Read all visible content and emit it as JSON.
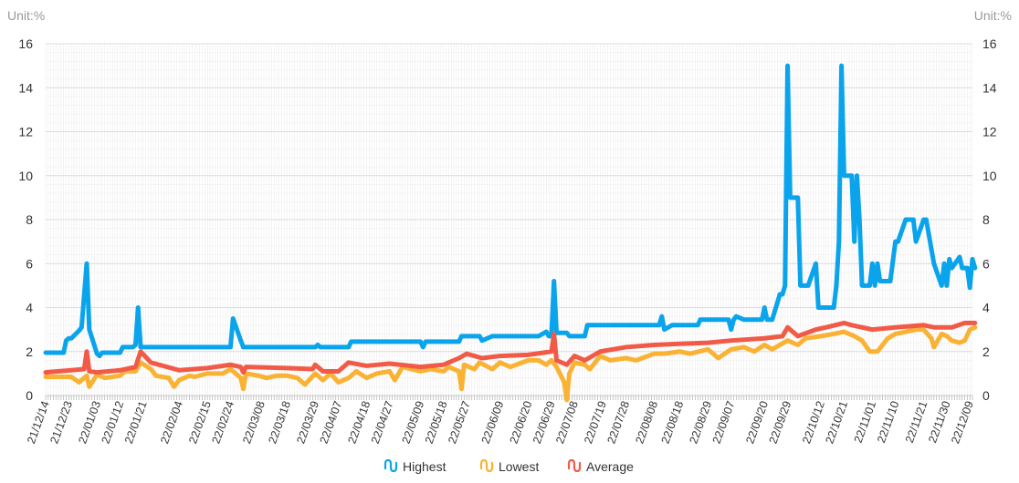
{
  "chart_data": {
    "type": "line",
    "left_unit_label": "Unit:%",
    "right_unit_label": "Unit:%",
    "ylim": [
      0,
      16
    ],
    "yticks": [
      0,
      2,
      4,
      6,
      8,
      10,
      12,
      14,
      16
    ],
    "grid": true,
    "legend_position": "bottom",
    "x_start": "21/12/14",
    "x_end": "22/12/10",
    "x_tick_labels": [
      "21/12/14",
      "21/12/23",
      "22/01/03",
      "22/01/12",
      "22/01/21",
      "22/02/04",
      "22/02/15",
      "22/02/24",
      "22/03/08",
      "22/03/18",
      "22/03/29",
      "22/04/07",
      "22/04/18",
      "22/04/27",
      "22/05/09",
      "22/05/18",
      "22/05/27",
      "22/06/09",
      "22/06/20",
      "22/06/29",
      "22/07/08",
      "22/07/19",
      "22/07/28",
      "22/08/08",
      "22/08/18",
      "22/08/29",
      "22/09/07",
      "22/09/20",
      "22/09/29",
      "22/10/12",
      "22/10/21",
      "22/11/01",
      "22/11/10",
      "22/11/21",
      "22/11/30",
      "22/12/09"
    ],
    "series": [
      {
        "name": "Highest",
        "color": "#0aa4ec",
        "points": [
          [
            "21/12/14",
            1.95
          ],
          [
            "21/12/21",
            1.95
          ],
          [
            "21/12/22",
            2.5
          ],
          [
            "21/12/23",
            2.6
          ],
          [
            "21/12/24",
            2.6
          ],
          [
            "21/12/27",
            2.95
          ],
          [
            "21/12/28",
            3.1
          ],
          [
            "21/12/30",
            6.0
          ],
          [
            "21/12/31",
            3.0
          ],
          [
            "22/01/03",
            1.9
          ],
          [
            "22/01/04",
            1.8
          ],
          [
            "22/01/05",
            1.95
          ],
          [
            "22/01/12",
            1.95
          ],
          [
            "22/01/13",
            2.2
          ],
          [
            "22/01/17",
            2.2
          ],
          [
            "22/01/18",
            2.3
          ],
          [
            "22/01/19",
            4.0
          ],
          [
            "22/01/20",
            2.2
          ],
          [
            "22/02/24",
            2.2
          ],
          [
            "22/02/25",
            3.5
          ],
          [
            "22/02/28",
            2.5
          ],
          [
            "22/03/01",
            2.2
          ],
          [
            "22/03/29",
            2.2
          ],
          [
            "22/03/30",
            2.3
          ],
          [
            "22/03/31",
            2.2
          ],
          [
            "22/04/11",
            2.2
          ],
          [
            "22/04/12",
            2.45
          ],
          [
            "22/05/09",
            2.45
          ],
          [
            "22/05/10",
            2.2
          ],
          [
            "22/05/11",
            2.45
          ],
          [
            "22/05/24",
            2.45
          ],
          [
            "22/05/25",
            2.7
          ],
          [
            "22/06/01",
            2.7
          ],
          [
            "22/06/02",
            2.5
          ],
          [
            "22/06/06",
            2.7
          ],
          [
            "22/06/24",
            2.7
          ],
          [
            "22/06/27",
            2.9
          ],
          [
            "22/06/28",
            2.7
          ],
          [
            "22/06/29",
            2.7
          ],
          [
            "22/06/30",
            5.2
          ],
          [
            "22/07/01",
            2.85
          ],
          [
            "22/07/05",
            2.85
          ],
          [
            "22/07/06",
            2.7
          ],
          [
            "22/07/12",
            2.7
          ],
          [
            "22/07/13",
            3.2
          ],
          [
            "22/08/10",
            3.2
          ],
          [
            "22/08/11",
            3.6
          ],
          [
            "22/08/12",
            3.0
          ],
          [
            "22/08/15",
            3.2
          ],
          [
            "22/08/25",
            3.2
          ],
          [
            "22/08/26",
            3.45
          ],
          [
            "22/09/06",
            3.45
          ],
          [
            "22/09/07",
            3.0
          ],
          [
            "22/09/08",
            3.45
          ],
          [
            "22/09/09",
            3.6
          ],
          [
            "22/09/12",
            3.45
          ],
          [
            "22/09/19",
            3.45
          ],
          [
            "22/09/20",
            4.0
          ],
          [
            "22/09/21",
            3.45
          ],
          [
            "22/09/23",
            3.45
          ],
          [
            "22/09/26",
            4.6
          ],
          [
            "22/09/27",
            4.6
          ],
          [
            "22/09/28",
            5.0
          ],
          [
            "22/09/29",
            15.0
          ],
          [
            "22/09/30",
            9.0
          ],
          [
            "22/10/03",
            9.0
          ],
          [
            "22/10/04",
            5.0
          ],
          [
            "22/10/07",
            5.0
          ],
          [
            "22/10/10",
            6.0
          ],
          [
            "22/10/11",
            4.0
          ],
          [
            "22/10/17",
            4.0
          ],
          [
            "22/10/18",
            5.0
          ],
          [
            "22/10/19",
            7.0
          ],
          [
            "22/10/20",
            15.0
          ],
          [
            "22/10/21",
            10.0
          ],
          [
            "22/10/24",
            10.0
          ],
          [
            "22/10/25",
            7.0
          ],
          [
            "22/10/26",
            10.0
          ],
          [
            "22/10/27",
            8.0
          ],
          [
            "22/10/28",
            5.0
          ],
          [
            "22/10/31",
            5.0
          ],
          [
            "22/11/01",
            6.0
          ],
          [
            "22/11/02",
            5.0
          ],
          [
            "22/11/03",
            6.0
          ],
          [
            "22/11/04",
            5.2
          ],
          [
            "22/11/08",
            5.2
          ],
          [
            "22/11/10",
            7.0
          ],
          [
            "22/11/11",
            7.0
          ],
          [
            "22/11/14",
            8.0
          ],
          [
            "22/11/17",
            8.0
          ],
          [
            "22/11/18",
            7.0
          ],
          [
            "22/11/21",
            8.0
          ],
          [
            "22/11/22",
            8.0
          ],
          [
            "22/11/25",
            6.0
          ],
          [
            "22/11/28",
            5.0
          ],
          [
            "22/11/29",
            6.0
          ],
          [
            "22/11/30",
            5.0
          ],
          [
            "22/12/01",
            6.2
          ],
          [
            "22/12/02",
            5.8
          ],
          [
            "22/12/05",
            6.3
          ],
          [
            "22/12/06",
            5.8
          ],
          [
            "22/12/08",
            5.8
          ],
          [
            "22/12/09",
            4.9
          ],
          [
            "22/12/10",
            6.2
          ],
          [
            "22/12/11",
            5.8
          ]
        ]
      },
      {
        "name": "Lowest",
        "color": "#f9b233",
        "points": [
          [
            "21/12/14",
            0.85
          ],
          [
            "21/12/24",
            0.85
          ],
          [
            "21/12/27",
            0.6
          ],
          [
            "21/12/30",
            0.9
          ],
          [
            "21/12/31",
            0.4
          ],
          [
            "22/01/03",
            0.95
          ],
          [
            "22/01/06",
            0.8
          ],
          [
            "22/01/12",
            0.9
          ],
          [
            "22/01/14",
            1.1
          ],
          [
            "22/01/18",
            1.1
          ],
          [
            "22/01/20",
            1.5
          ],
          [
            "22/01/24",
            1.2
          ],
          [
            "22/01/26",
            0.9
          ],
          [
            "22/01/31",
            0.8
          ],
          [
            "22/02/02",
            0.4
          ],
          [
            "22/02/04",
            0.7
          ],
          [
            "22/02/08",
            0.9
          ],
          [
            "22/02/10",
            0.85
          ],
          [
            "22/02/15",
            1.0
          ],
          [
            "22/02/21",
            1.0
          ],
          [
            "22/02/24",
            1.2
          ],
          [
            "22/02/28",
            0.8
          ],
          [
            "22/03/01",
            0.3
          ],
          [
            "22/03/02",
            1.0
          ],
          [
            "22/03/07",
            0.9
          ],
          [
            "22/03/10",
            0.8
          ],
          [
            "22/03/14",
            0.9
          ],
          [
            "22/03/18",
            0.9
          ],
          [
            "22/03/22",
            0.8
          ],
          [
            "22/03/25",
            0.5
          ],
          [
            "22/03/29",
            1.0
          ],
          [
            "22/04/01",
            0.7
          ],
          [
            "22/04/04",
            1.0
          ],
          [
            "22/04/07",
            0.6
          ],
          [
            "22/04/11",
            0.8
          ],
          [
            "22/04/14",
            1.1
          ],
          [
            "22/04/18",
            0.8
          ],
          [
            "22/04/22",
            1.0
          ],
          [
            "22/04/27",
            1.1
          ],
          [
            "22/04/29",
            0.7
          ],
          [
            "22/05/02",
            1.3
          ],
          [
            "22/05/09",
            1.1
          ],
          [
            "22/05/13",
            1.2
          ],
          [
            "22/05/18",
            1.1
          ],
          [
            "22/05/20",
            1.3
          ],
          [
            "22/05/24",
            1.1
          ],
          [
            "22/05/25",
            0.3
          ],
          [
            "22/05/26",
            1.4
          ],
          [
            "22/05/30",
            1.2
          ],
          [
            "22/06/01",
            1.5
          ],
          [
            "22/06/06",
            1.2
          ],
          [
            "22/06/09",
            1.5
          ],
          [
            "22/06/13",
            1.3
          ],
          [
            "22/06/20",
            1.6
          ],
          [
            "22/06/24",
            1.6
          ],
          [
            "22/06/27",
            1.4
          ],
          [
            "22/06/29",
            1.6
          ],
          [
            "22/07/01",
            1.3
          ],
          [
            "22/07/04",
            0.6
          ],
          [
            "22/07/05",
            -0.2
          ],
          [
            "22/07/06",
            1.0
          ],
          [
            "22/07/08",
            1.5
          ],
          [
            "22/07/12",
            1.4
          ],
          [
            "22/07/14",
            1.2
          ],
          [
            "22/07/18",
            1.8
          ],
          [
            "22/07/22",
            1.6
          ],
          [
            "22/07/28",
            1.7
          ],
          [
            "22/08/01",
            1.6
          ],
          [
            "22/08/08",
            1.9
          ],
          [
            "22/08/12",
            1.9
          ],
          [
            "22/08/18",
            2.0
          ],
          [
            "22/08/22",
            1.9
          ],
          [
            "22/08/29",
            2.1
          ],
          [
            "22/09/02",
            1.7
          ],
          [
            "22/09/07",
            2.1
          ],
          [
            "22/09/12",
            2.2
          ],
          [
            "22/09/16",
            2.0
          ],
          [
            "22/09/20",
            2.3
          ],
          [
            "22/09/23",
            2.1
          ],
          [
            "22/09/29",
            2.5
          ],
          [
            "22/10/03",
            2.3
          ],
          [
            "22/10/06",
            2.6
          ],
          [
            "22/10/12",
            2.7
          ],
          [
            "22/10/17",
            2.8
          ],
          [
            "22/10/21",
            2.9
          ],
          [
            "22/10/25",
            2.7
          ],
          [
            "22/10/28",
            2.5
          ],
          [
            "22/10/31",
            2.0
          ],
          [
            "22/11/03",
            2.0
          ],
          [
            "22/11/07",
            2.6
          ],
          [
            "22/11/10",
            2.8
          ],
          [
            "22/11/14",
            2.9
          ],
          [
            "22/11/18",
            3.0
          ],
          [
            "22/11/21",
            3.0
          ],
          [
            "22/11/24",
            2.6
          ],
          [
            "22/11/25",
            2.2
          ],
          [
            "22/11/28",
            2.8
          ],
          [
            "22/11/30",
            2.7
          ],
          [
            "22/12/02",
            2.5
          ],
          [
            "22/12/05",
            2.4
          ],
          [
            "22/12/07",
            2.5
          ],
          [
            "22/12/09",
            3.0
          ],
          [
            "22/12/11",
            3.1
          ]
        ]
      },
      {
        "name": "Average",
        "color": "#f25a48",
        "points": [
          [
            "21/12/14",
            1.05
          ],
          [
            "21/12/24",
            1.15
          ],
          [
            "21/12/29",
            1.2
          ],
          [
            "21/12/30",
            2.0
          ],
          [
            "21/12/31",
            1.1
          ],
          [
            "22/01/03",
            1.05
          ],
          [
            "22/01/12",
            1.15
          ],
          [
            "22/01/18",
            1.3
          ],
          [
            "22/01/20",
            2.0
          ],
          [
            "22/01/24",
            1.5
          ],
          [
            "22/02/04",
            1.15
          ],
          [
            "22/02/15",
            1.25
          ],
          [
            "22/02/24",
            1.4
          ],
          [
            "22/02/28",
            1.3
          ],
          [
            "22/03/01",
            1.05
          ],
          [
            "22/03/02",
            1.3
          ],
          [
            "22/03/18",
            1.25
          ],
          [
            "22/03/28",
            1.2
          ],
          [
            "22/03/29",
            1.4
          ],
          [
            "22/04/01",
            1.1
          ],
          [
            "22/04/07",
            1.1
          ],
          [
            "22/04/11",
            1.5
          ],
          [
            "22/04/18",
            1.35
          ],
          [
            "22/04/27",
            1.45
          ],
          [
            "22/05/09",
            1.3
          ],
          [
            "22/05/18",
            1.4
          ],
          [
            "22/05/24",
            1.7
          ],
          [
            "22/05/27",
            1.9
          ],
          [
            "22/06/02",
            1.7
          ],
          [
            "22/06/09",
            1.8
          ],
          [
            "22/06/20",
            1.85
          ],
          [
            "22/06/29",
            2.0
          ],
          [
            "22/06/30",
            2.8
          ],
          [
            "22/07/01",
            1.6
          ],
          [
            "22/07/05",
            1.4
          ],
          [
            "22/07/08",
            1.8
          ],
          [
            "22/07/12",
            1.6
          ],
          [
            "22/07/18",
            2.0
          ],
          [
            "22/07/28",
            2.2
          ],
          [
            "22/08/08",
            2.3
          ],
          [
            "22/08/18",
            2.35
          ],
          [
            "22/08/29",
            2.4
          ],
          [
            "22/09/07",
            2.5
          ],
          [
            "22/09/20",
            2.6
          ],
          [
            "22/09/27",
            2.7
          ],
          [
            "22/09/29",
            3.1
          ],
          [
            "22/10/03",
            2.7
          ],
          [
            "22/10/10",
            3.0
          ],
          [
            "22/10/14",
            3.1
          ],
          [
            "22/10/21",
            3.3
          ],
          [
            "22/10/24",
            3.2
          ],
          [
            "22/11/01",
            3.0
          ],
          [
            "22/11/10",
            3.1
          ],
          [
            "22/11/21",
            3.2
          ],
          [
            "22/11/25",
            3.1
          ],
          [
            "22/12/02",
            3.1
          ],
          [
            "22/12/07",
            3.3
          ],
          [
            "22/12/11",
            3.3
          ]
        ]
      }
    ]
  }
}
